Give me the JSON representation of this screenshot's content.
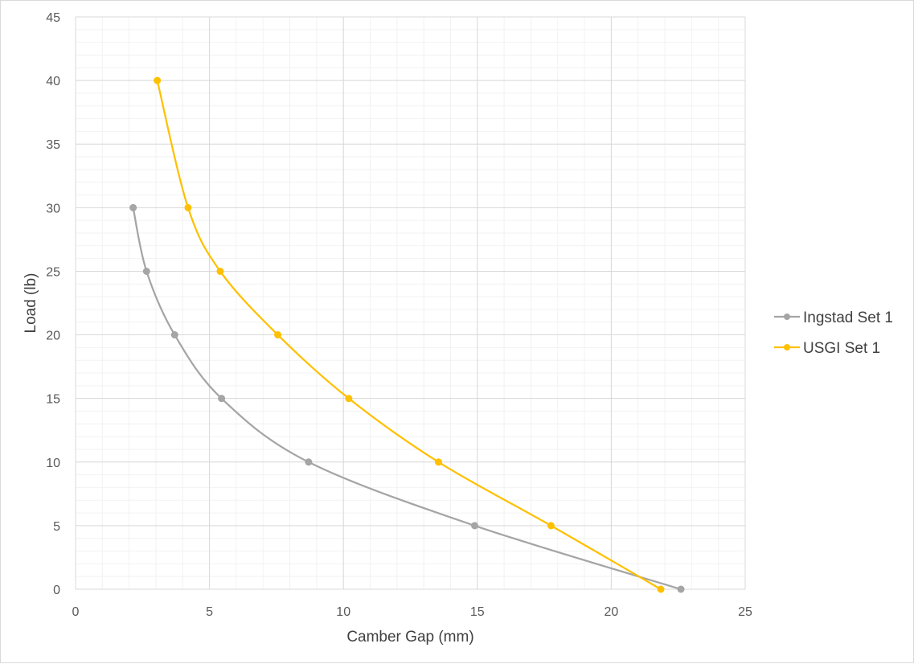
{
  "chart_data": {
    "type": "scatter",
    "title": "",
    "xlabel": "Camber Gap (mm)",
    "ylabel": "Load (lb)",
    "xlim": [
      0,
      25
    ],
    "ylim": [
      0,
      45
    ],
    "x_ticks": [
      0,
      5,
      10,
      15,
      20,
      25
    ],
    "y_ticks": [
      0,
      5,
      10,
      15,
      20,
      25,
      30,
      35,
      40,
      45
    ],
    "grid": "major and minor",
    "lines": "smoothed with markers",
    "legend": "right",
    "series": [
      {
        "name": "Ingstad Set 1",
        "color": "#a5a5a5",
        "x": [
          22.6,
          14.9,
          8.7,
          5.45,
          3.7,
          2.65,
          2.15
        ],
        "y": [
          0,
          5,
          10,
          15,
          20,
          25,
          30
        ]
      },
      {
        "name": "USGI Set 1",
        "color": "#ffc000",
        "x": [
          21.85,
          17.75,
          13.55,
          10.2,
          7.55,
          5.4,
          4.2,
          3.05
        ],
        "y": [
          0,
          5,
          10,
          15,
          20,
          25,
          30,
          40
        ]
      }
    ]
  }
}
